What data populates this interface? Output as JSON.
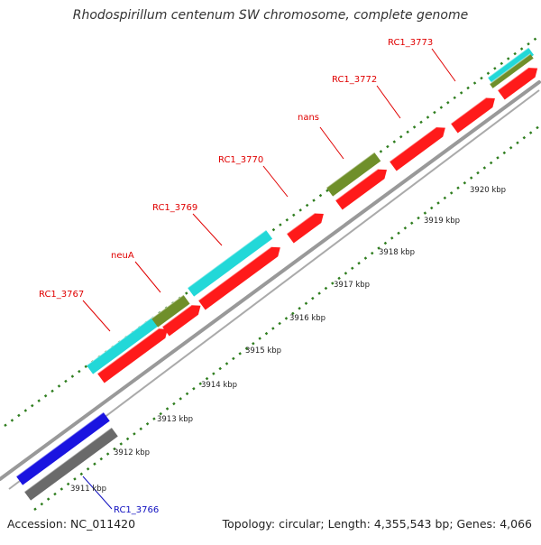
{
  "title": "Rhodospirillum centenum SW chromosome, complete genome",
  "accession": "Accession: NC_011420",
  "topology": "Topology: circular; Length: 4,355,543 bp; Genes: 4,066",
  "colors": {
    "red": "#ff1a1a",
    "cyan": "#22d8d8",
    "olive": "#6f8f2a",
    "blue": "#1a14e0",
    "gray": "#6a6a6a",
    "label_red": "#e00000",
    "label_blue": "#1010c0",
    "tick_green": "#2e7d1e"
  },
  "gene_labels": [
    {
      "id": "rc1_3767",
      "text": "RC1_3767",
      "color": "red"
    },
    {
      "id": "neua",
      "text": "neuA",
      "color": "red"
    },
    {
      "id": "rc1_3769",
      "text": "RC1_3769",
      "color": "red"
    },
    {
      "id": "rc1_3770",
      "text": "RC1_3770",
      "color": "red"
    },
    {
      "id": "nans",
      "text": "nans",
      "color": "red"
    },
    {
      "id": "rc1_3772",
      "text": "RC1_3772",
      "color": "red"
    },
    {
      "id": "rc1_3773",
      "text": "RC1_3773",
      "color": "red"
    },
    {
      "id": "rc1_3766",
      "text": "RC1_3766",
      "color": "blue"
    }
  ],
  "kbp_labels": [
    "3911 kbp",
    "3912 kbp",
    "3913 kbp",
    "3914 kbp",
    "3915 kbp",
    "3916 kbp",
    "3917 kbp",
    "3918 kbp",
    "3919 kbp",
    "3920 kbp"
  ]
}
